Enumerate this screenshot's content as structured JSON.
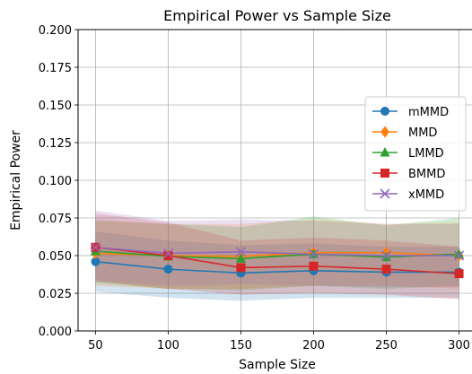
{
  "chart_data": {
    "type": "line",
    "title": "Empirical Power vs Sample Size",
    "xlabel": "Sample Size",
    "ylabel": "Empirical Power",
    "x": [
      50,
      100,
      150,
      200,
      250,
      300
    ],
    "xlim": [
      38,
      312
    ],
    "ylim": [
      0,
      0.2
    ],
    "yticks": [
      0.0,
      0.025,
      0.05,
      0.075,
      0.1,
      0.125,
      0.15,
      0.175,
      0.2
    ],
    "ytick_labels": [
      "0.000",
      "0.025",
      "0.050",
      "0.075",
      "0.100",
      "0.125",
      "0.150",
      "0.175",
      "0.200"
    ],
    "xticks": [
      50,
      100,
      150,
      200,
      250,
      300
    ],
    "xtick_labels": [
      "50",
      "100",
      "150",
      "200",
      "250",
      "300"
    ],
    "grid": true,
    "legend_position": "center-right",
    "series": [
      {
        "name": "mMMD",
        "color": "#1f77b4",
        "marker": "circle",
        "values": [
          0.046,
          0.041,
          0.0385,
          0.04,
          0.039,
          0.039
        ],
        "band_lower": [
          0.026,
          0.022,
          0.02,
          0.022,
          0.022,
          0.022
        ],
        "band_upper": [
          0.066,
          0.06,
          0.057,
          0.058,
          0.056,
          0.056
        ]
      },
      {
        "name": "MMD",
        "color": "#ff7f0e",
        "marker": "diamond",
        "values": [
          0.0515,
          0.05,
          0.0495,
          0.052,
          0.052,
          0.05
        ],
        "band_lower": [
          0.03,
          0.028,
          0.028,
          0.03,
          0.03,
          0.028
        ],
        "band_upper": [
          0.073,
          0.071,
          0.071,
          0.074,
          0.071,
          0.072
        ]
      },
      {
        "name": "LMMD",
        "color": "#2ca02c",
        "marker": "triangle",
        "values": [
          0.053,
          0.0495,
          0.048,
          0.051,
          0.049,
          0.051
        ],
        "band_lower": [
          0.032,
          0.028,
          0.027,
          0.03,
          0.028,
          0.03
        ],
        "band_upper": [
          0.074,
          0.071,
          0.069,
          0.076,
          0.07,
          0.075
        ]
      },
      {
        "name": "BMMD",
        "color": "#d62728",
        "marker": "square",
        "values": [
          0.0555,
          0.05,
          0.042,
          0.043,
          0.041,
          0.038
        ],
        "band_lower": [
          0.033,
          0.028,
          0.024,
          0.025,
          0.024,
          0.021
        ],
        "band_upper": [
          0.078,
          0.072,
          0.06,
          0.062,
          0.06,
          0.056
        ]
      },
      {
        "name": "xMMD",
        "color": "#9467bd",
        "marker": "x",
        "values": [
          0.0555,
          0.0515,
          0.0525,
          0.051,
          0.05,
          0.05
        ],
        "band_lower": [
          0.033,
          0.03,
          0.031,
          0.03,
          0.029,
          0.029
        ],
        "band_upper": [
          0.08,
          0.073,
          0.074,
          0.073,
          0.071,
          0.071
        ]
      }
    ]
  }
}
